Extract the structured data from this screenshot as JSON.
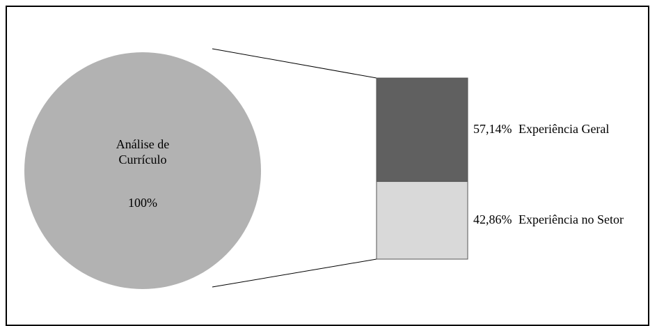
{
  "chart_data": {
    "type": "pie",
    "categories": [
      "Análise de Currículo"
    ],
    "values": [
      100
    ],
    "value_labels": [
      "100%"
    ],
    "color": "#b2b2b2",
    "breakdown": {
      "type": "bar",
      "categories": [
        "Experiência Geral",
        "Experiência no Setor"
      ],
      "values": [
        57.14,
        42.86
      ],
      "value_labels": [
        "57,14%",
        "42,86%"
      ],
      "colors": [
        "#606060",
        "#d9d9d9"
      ]
    }
  }
}
